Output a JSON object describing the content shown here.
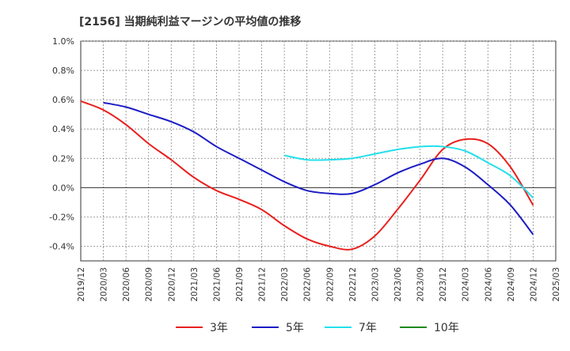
{
  "chart_data": {
    "type": "line",
    "title": "[2156]  当期純利益マージンの平均値の推移",
    "xlabel": "",
    "ylabel": "",
    "ylim": [
      -0.5,
      1.0
    ],
    "yticks": [
      "1.0%",
      "0.8%",
      "0.6%",
      "0.4%",
      "0.2%",
      "0.0%",
      "-0.2%",
      "-0.4%"
    ],
    "ytick_values": [
      1.0,
      0.8,
      0.6,
      0.4,
      0.2,
      0.0,
      -0.2,
      -0.4
    ],
    "categories": [
      "2019/12",
      "2020/03",
      "2020/06",
      "2020/09",
      "2020/12",
      "2021/03",
      "2021/06",
      "2021/09",
      "2021/12",
      "2022/03",
      "2022/06",
      "2022/09",
      "2022/12",
      "2023/03",
      "2023/06",
      "2023/09",
      "2023/12",
      "2024/03",
      "2024/06",
      "2024/09",
      "2024/12",
      "2025/03"
    ],
    "grid": true,
    "legend_position": "bottom",
    "series": [
      {
        "name": "3年",
        "color": "#e8201e",
        "values": [
          0.59,
          0.53,
          0.43,
          0.3,
          0.19,
          0.07,
          -0.02,
          -0.08,
          -0.15,
          -0.26,
          -0.35,
          -0.4,
          -0.42,
          -0.33,
          -0.15,
          0.05,
          0.26,
          0.33,
          0.3,
          0.14,
          -0.12,
          null
        ]
      },
      {
        "name": "5年",
        "color": "#1c1cc4",
        "values": [
          null,
          0.58,
          0.55,
          0.5,
          0.45,
          0.38,
          0.28,
          0.2,
          0.12,
          0.04,
          -0.02,
          -0.04,
          -0.04,
          0.02,
          0.1,
          0.16,
          0.2,
          0.14,
          0.02,
          -0.12,
          -0.32,
          null
        ]
      },
      {
        "name": "7年",
        "color": "#22e0ea",
        "values": [
          null,
          null,
          null,
          null,
          null,
          null,
          null,
          null,
          null,
          0.22,
          0.19,
          0.19,
          0.2,
          0.23,
          0.26,
          0.28,
          0.28,
          0.25,
          0.17,
          0.08,
          -0.07,
          null
        ]
      },
      {
        "name": "10年",
        "color": "#1e8a1e",
        "values": [
          null,
          null,
          null,
          null,
          null,
          null,
          null,
          null,
          null,
          null,
          null,
          null,
          null,
          null,
          null,
          null,
          null,
          null,
          null,
          null,
          null,
          null
        ]
      }
    ]
  }
}
